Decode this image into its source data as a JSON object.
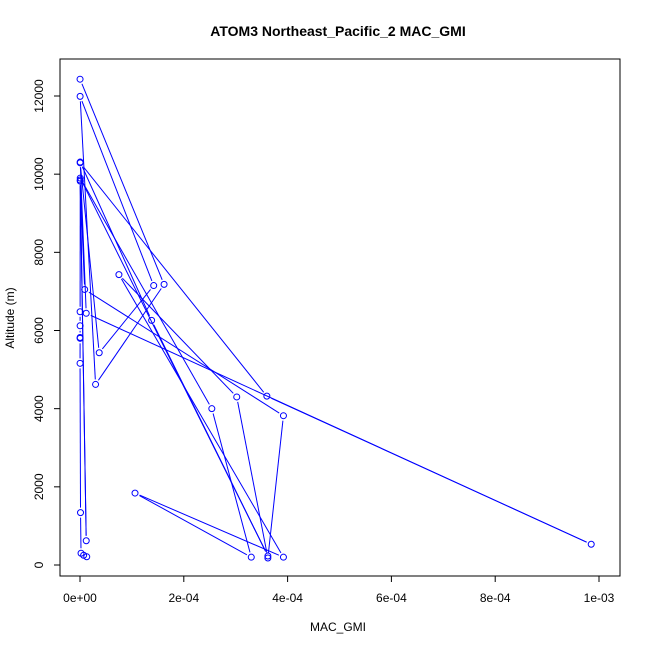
{
  "chart_data": {
    "type": "line",
    "title": "ATOM3 Northeast_Pacific_2 MAC_GMI",
    "xlabel": "MAC_GMI",
    "ylabel": "Altitude (m)",
    "xlim": [
      0,
      0.001
    ],
    "ylim": [
      0,
      12500
    ],
    "xticks": [
      0,
      0.0002,
      0.0004,
      0.0006,
      0.0008,
      0.001
    ],
    "xtick_labels": [
      "0e+00",
      "2e-04",
      "4e-04",
      "6e-04",
      "8e-04",
      "1e-03"
    ],
    "yticks": [
      0,
      2000,
      4000,
      6000,
      8000,
      10000,
      12000
    ],
    "ytick_labels": [
      "0",
      "2000",
      "4000",
      "6000",
      "8000",
      "10000",
      "12000"
    ],
    "grid": false,
    "series_color": "#0000ff",
    "marker": "open-circle",
    "points": [
      {
        "x": 1e-07,
        "y": 12430
      },
      {
        "x": 0.000162,
        "y": 7180
      },
      {
        "x": 3e-05,
        "y": 4620
      },
      {
        "x": 2e-07,
        "y": 11990
      },
      {
        "x": 0.000142,
        "y": 7150
      },
      {
        "x": 3.7e-05,
        "y": 5430
      },
      {
        "x": 3e-07,
        "y": 10290
      },
      {
        "x": 0.00036,
        "y": 4320
      },
      {
        "x": 0.000985,
        "y": 530
      },
      {
        "x": 1.2e-05,
        "y": 6440
      },
      {
        "x": 4e-07,
        "y": 10310
      },
      {
        "x": 0.000138,
        "y": 6260
      },
      {
        "x": 0.000362,
        "y": 230
      },
      {
        "x": 5e-07,
        "y": 9900
      },
      {
        "x": 0.000254,
        "y": 4000
      },
      {
        "x": 0.00033,
        "y": 200
      },
      {
        "x": 0.000106,
        "y": 1840
      },
      {
        "x": 0.000392,
        "y": 200
      },
      {
        "x": 7.5e-05,
        "y": 7430
      },
      {
        "x": 0.000302,
        "y": 4300
      },
      {
        "x": 0.000362,
        "y": 180
      },
      {
        "x": 0.000392,
        "y": 3820
      },
      {
        "x": 9e-06,
        "y": 7050
      },
      {
        "x": 3e-07,
        "y": 9850
      },
      {
        "x": 1.2e-05,
        "y": 620
      },
      {
        "x": 5e-07,
        "y": 9820
      },
      {
        "x": 2e-07,
        "y": 6480
      },
      {
        "x": 2e-07,
        "y": 6120
      },
      {
        "x": 2e-07,
        "y": 5820
      },
      {
        "x": 2e-07,
        "y": 5800
      },
      {
        "x": 1e-07,
        "y": 5160
      },
      {
        "x": 1e-06,
        "y": 1340
      },
      {
        "x": 2e-06,
        "y": 300
      },
      {
        "x": 7e-06,
        "y": 250
      },
      {
        "x": 1.3e-05,
        "y": 210
      }
    ]
  }
}
